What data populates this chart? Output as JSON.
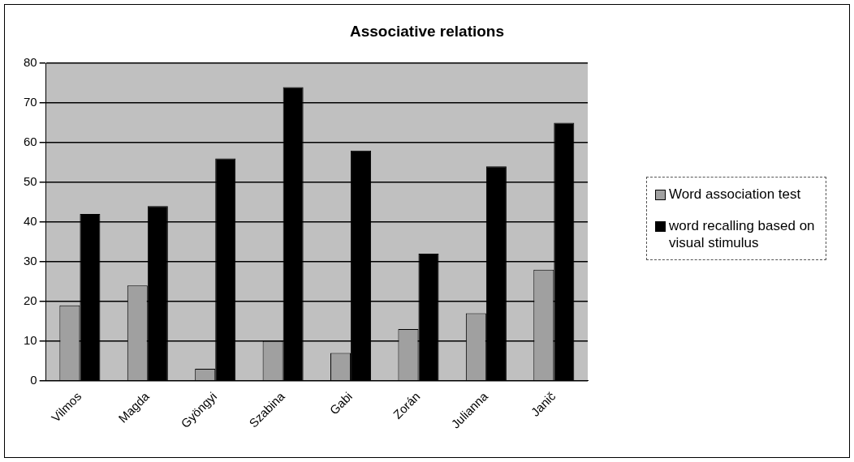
{
  "chart_data": {
    "type": "bar",
    "title": "Associative relations",
    "categories": [
      "Vilmos",
      "Magda",
      "Gyöngyi",
      "Szabina",
      "Gabi",
      "Zorán",
      "Julianna",
      "Janič"
    ],
    "series": [
      {
        "name": "Word association test",
        "color": "#a0a0a0",
        "values": [
          19,
          24,
          3,
          10,
          7,
          13,
          17,
          28
        ]
      },
      {
        "name": "word recalling based on visual stimulus",
        "color": "#000000",
        "values": [
          42,
          44,
          56,
          74,
          58,
          32,
          54,
          65
        ]
      }
    ],
    "ylim": [
      0,
      80
    ],
    "yticks": [
      0,
      10,
      20,
      30,
      40,
      50,
      60,
      70,
      80
    ],
    "grid": "y",
    "legend": "right"
  }
}
